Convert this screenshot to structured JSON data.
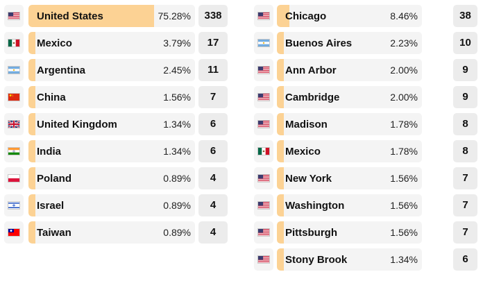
{
  "countries": [
    {
      "flag": "us-flag-icon",
      "name": "United States",
      "pct": "75.28%",
      "share": 0.7528,
      "count": "338"
    },
    {
      "flag": "mexico-flag-icon",
      "name": "Mexico",
      "pct": "3.79%",
      "share": 0.0379,
      "count": "17"
    },
    {
      "flag": "argentina-flag-icon",
      "name": "Argentina",
      "pct": "2.45%",
      "share": 0.0245,
      "count": "11"
    },
    {
      "flag": "china-flag-icon",
      "name": "China",
      "pct": "1.56%",
      "share": 0.0156,
      "count": "7"
    },
    {
      "flag": "uk-flag-icon",
      "name": "United Kingdom",
      "pct": "1.34%",
      "share": 0.0134,
      "count": "6"
    },
    {
      "flag": "india-flag-icon",
      "name": "India",
      "pct": "1.34%",
      "share": 0.0134,
      "count": "6"
    },
    {
      "flag": "poland-flag-icon",
      "name": "Poland",
      "pct": "0.89%",
      "share": 0.0089,
      "count": "4"
    },
    {
      "flag": "israel-flag-icon",
      "name": "Israel",
      "pct": "0.89%",
      "share": 0.0089,
      "count": "4"
    },
    {
      "flag": "taiwan-flag-icon",
      "name": "Taiwan",
      "pct": "0.89%",
      "share": 0.0089,
      "count": "4"
    }
  ],
  "cities": [
    {
      "flag": "us-flag-icon",
      "name": "Chicago",
      "pct": "8.46%",
      "share": 0.0846,
      "count": "38"
    },
    {
      "flag": "argentina-flag-icon",
      "name": "Buenos Aires",
      "pct": "2.23%",
      "share": 0.0223,
      "count": "10"
    },
    {
      "flag": "us-flag-icon",
      "name": "Ann Arbor",
      "pct": "2.00%",
      "share": 0.02,
      "count": "9"
    },
    {
      "flag": "us-flag-icon",
      "name": "Cambridge",
      "pct": "2.00%",
      "share": 0.02,
      "count": "9"
    },
    {
      "flag": "us-flag-icon",
      "name": "Madison",
      "pct": "1.78%",
      "share": 0.0178,
      "count": "8"
    },
    {
      "flag": "mexico-flag-icon",
      "name": "Mexico",
      "pct": "1.78%",
      "share": 0.0178,
      "count": "8"
    },
    {
      "flag": "us-flag-icon",
      "name": "New York",
      "pct": "1.56%",
      "share": 0.0156,
      "count": "7"
    },
    {
      "flag": "us-flag-icon",
      "name": "Washington",
      "pct": "1.56%",
      "share": 0.0156,
      "count": "7"
    },
    {
      "flag": "us-flag-icon",
      "name": "Pittsburgh",
      "pct": "1.56%",
      "share": 0.0156,
      "count": "7"
    },
    {
      "flag": "us-flag-icon",
      "name": "Stony Brook",
      "pct": "1.34%",
      "share": 0.0134,
      "count": "6"
    }
  ],
  "colors": {
    "bar_fill": "#fcd294",
    "row_bg": "#f4f4f4",
    "count_bg": "#ececec"
  }
}
